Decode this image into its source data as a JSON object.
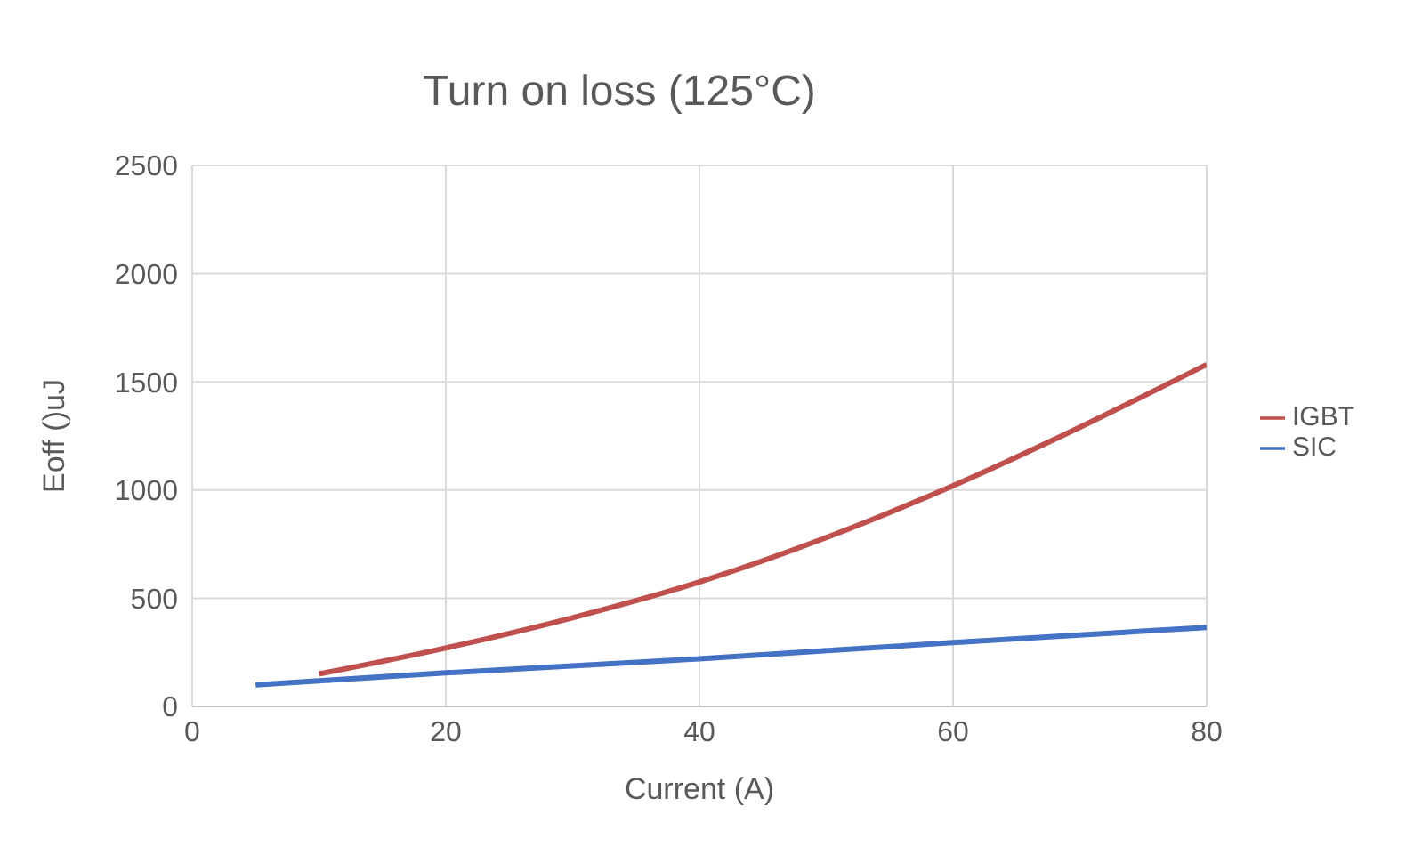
{
  "chart_data": {
    "type": "line",
    "title": "Turn on loss (125°C)",
    "xlabel": "Current (A)",
    "ylabel": "Eoff ()uJ",
    "xlim": [
      0,
      80
    ],
    "xticks": [
      0,
      20,
      40,
      60,
      80
    ],
    "ylim": [
      0,
      2500
    ],
    "yticks": [
      0,
      500,
      1000,
      1500,
      2000,
      2500
    ],
    "grid": true,
    "legend": "right",
    "marker": "none",
    "line_style": "solid",
    "series": [
      {
        "name": "SIC",
        "color": "#4472c4",
        "x": [
          5,
          20,
          40,
          60,
          80
        ],
        "values": [
          100,
          155,
          220,
          295,
          365
        ]
      },
      {
        "name": "IGBT",
        "color": "#c0504d",
        "x": [
          10,
          20,
          30,
          40,
          50,
          60,
          70,
          80
        ],
        "values": [
          150,
          270,
          410,
          575,
          780,
          1020,
          1290,
          1580
        ]
      }
    ]
  }
}
